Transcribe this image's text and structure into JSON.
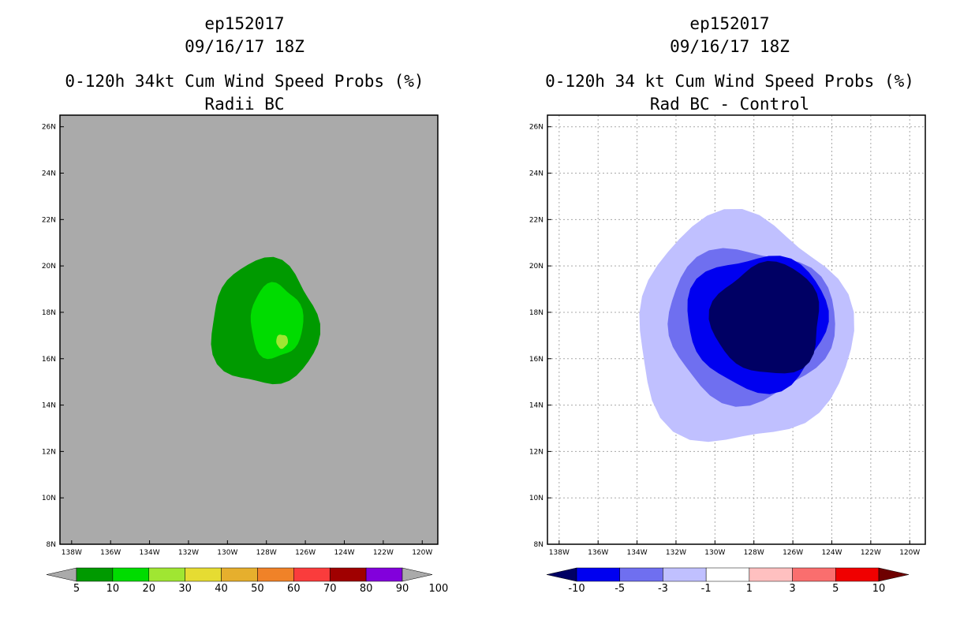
{
  "chart_data": [
    {
      "type": "filled-contour",
      "title_lines": [
        "ep152017",
        "09/16/17 18Z",
        "0-120h 34kt Cum Wind Speed Probs (%)",
        "Radii BC"
      ],
      "x_ticks": [
        "138W",
        "136W",
        "134W",
        "132W",
        "130W",
        "128W",
        "126W",
        "124W",
        "122W",
        "120W"
      ],
      "y_ticks": [
        "8N",
        "10N",
        "12N",
        "14N",
        "16N",
        "18N",
        "20N",
        "22N",
        "24N",
        "26N"
      ],
      "xlim_lon_w": [
        138.6,
        119.2
      ],
      "ylim_lat_n": [
        8,
        26.5
      ],
      "background_color": "#aaaaaa",
      "contour_levels": [
        {
          "range": "5-10",
          "color": "#009a00",
          "center_lon_w": 128.1,
          "center_lat_n": 17.5,
          "semi_lon_deg": 2.75,
          "semi_lat_deg": 2.7
        },
        {
          "range": "10-20",
          "color": "#00dc00",
          "center_lon_w": 127.5,
          "center_lat_n": 17.6,
          "semi_lon_deg": 1.35,
          "semi_lat_deg": 1.6
        },
        {
          "range": "20-30",
          "color": "#a0e632",
          "center_lon_w": 127.2,
          "center_lat_n": 16.75,
          "semi_lon_deg": 0.3,
          "semi_lat_deg": 0.3
        }
      ],
      "colorbar": {
        "labels": [
          "5",
          "10",
          "20",
          "30",
          "40",
          "50",
          "60",
          "70",
          "80",
          "90",
          "100"
        ],
        "colors": [
          "#009a00",
          "#00dc00",
          "#a0e632",
          "#e6dc32",
          "#e6af2d",
          "#f08228",
          "#fa3c3c",
          "#a00000",
          "#8200dc"
        ],
        "end_color": "#aaaaaa"
      }
    },
    {
      "type": "filled-contour",
      "title_lines": [
        "ep152017",
        "09/16/17 18Z",
        "0-120h 34 kt Cum Wind Speed Probs (%)",
        "Rad BC - Control"
      ],
      "x_ticks": [
        "138W",
        "136W",
        "134W",
        "132W",
        "130W",
        "128W",
        "126W",
        "124W",
        "122W",
        "120W"
      ],
      "y_ticks": [
        "8N",
        "10N",
        "12N",
        "14N",
        "16N",
        "18N",
        "20N",
        "22N",
        "24N",
        "26N"
      ],
      "xlim_lon_w": [
        138.6,
        119.2
      ],
      "ylim_lat_n": [
        8,
        26.5
      ],
      "grid": true,
      "contour_levels": [
        {
          "range": "-3 to -1",
          "color": "#c0c0ff",
          "center_lon_w": 128.6,
          "center_lat_n": 17.2,
          "semi_lon_deg": 5.5,
          "semi_lat_deg": 4.9
        },
        {
          "range": "-5 to -3",
          "color": "#6f6ff0",
          "center_lon_w": 128.2,
          "center_lat_n": 17.5,
          "semi_lon_deg": 4.3,
          "semi_lat_deg": 3.3
        },
        {
          "range": "-10 to -5",
          "color": "#0000f0",
          "center_lon_w": 127.8,
          "center_lat_n": 17.6,
          "semi_lon_deg": 3.6,
          "semi_lat_deg": 2.9
        },
        {
          "range": "< -10",
          "color": "#000064",
          "center_lon_w": 127.3,
          "center_lat_n": 17.7,
          "semi_lon_deg": 2.8,
          "semi_lat_deg": 2.4
        }
      ],
      "colorbar": {
        "labels": [
          "-10",
          "-5",
          "-3",
          "-1",
          "1",
          "3",
          "5",
          "10"
        ],
        "colors": [
          "#0000f0",
          "#6f6ff0",
          "#c0c0ff",
          "#ffffff",
          "#ffc0c0",
          "#fa6e6e",
          "#f00000"
        ],
        "low_end_color": "#000064",
        "high_end_color": "#6e0000"
      }
    }
  ]
}
